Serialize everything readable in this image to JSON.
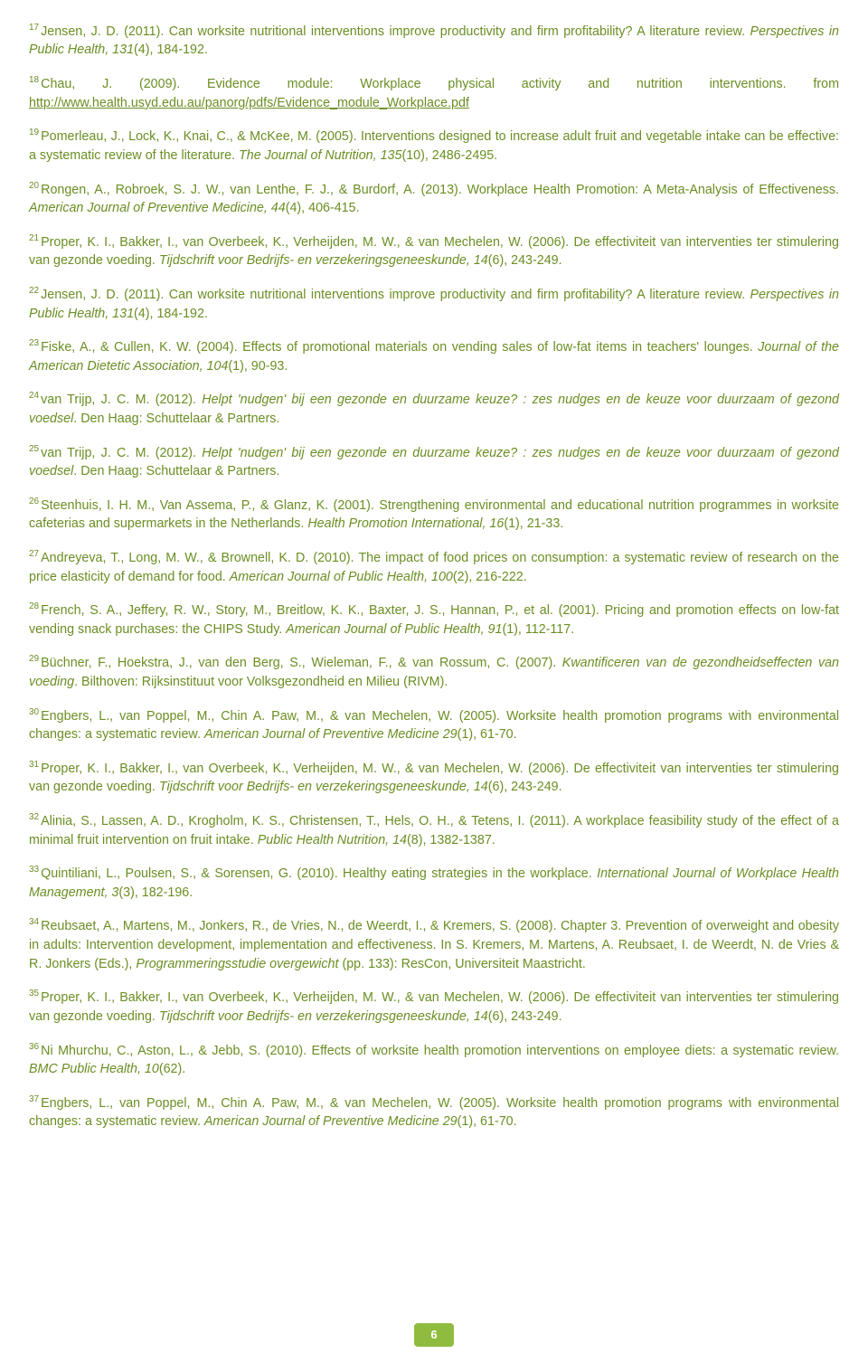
{
  "page_number": "6",
  "refs": [
    {
      "n": "17",
      "segs": [
        {
          "t": "Jensen, J. D. (2011). Can worksite nutritional interventions improve productivity and firm profitability? A literature review. "
        },
        {
          "t": "Perspectives in Public Health, 131",
          "i": true
        },
        {
          "t": "(4), 184-192."
        }
      ]
    },
    {
      "n": "18",
      "segs": [
        {
          "t": "Chau, J. (2009). Evidence module: Workplace physical activity and nutrition interventions. from "
        },
        {
          "t": "http://www.health.usyd.edu.au/panorg/pdfs/Evidence_module_Workplace.pdf",
          "link": true
        }
      ]
    },
    {
      "n": "19",
      "segs": [
        {
          "t": "Pomerleau, J., Lock, K., Knai, C., & McKee, M. (2005). Interventions designed to increase adult fruit and vegetable intake can be effective: a systematic review of the literature. "
        },
        {
          "t": "The Journal of Nutrition, 135",
          "i": true
        },
        {
          "t": "(10), 2486-2495."
        }
      ]
    },
    {
      "n": "20",
      "segs": [
        {
          "t": "Rongen, A., Robroek, S. J. W., van Lenthe, F. J., & Burdorf, A. (2013). Workplace Health Promotion: A Meta-Analysis of Effectiveness. "
        },
        {
          "t": "American Journal of Preventive Medicine, 44",
          "i": true
        },
        {
          "t": "(4), 406-415."
        }
      ]
    },
    {
      "n": "21",
      "segs": [
        {
          "t": "Proper, K. I., Bakker, I., van Overbeek, K., Verheijden, M. W., & van Mechelen, W. (2006). De effectiviteit van interventies ter stimulering van gezonde voeding. "
        },
        {
          "t": "Tijdschrift voor Bedrijfs- en verzekeringsgeneeskunde, 14",
          "i": true
        },
        {
          "t": "(6), 243-249."
        }
      ]
    },
    {
      "n": "22",
      "segs": [
        {
          "t": "Jensen, J. D. (2011). Can worksite nutritional interventions improve productivity and firm profitability? A literature review. "
        },
        {
          "t": "Perspectives in Public Health, 131",
          "i": true
        },
        {
          "t": "(4), 184-192."
        }
      ]
    },
    {
      "n": "23",
      "segs": [
        {
          "t": "Fiske, A., & Cullen, K. W. (2004). Effects of promotional materials on vending sales of low-fat items in teachers' lounges. "
        },
        {
          "t": "Journal of the American Dietetic Association, 104",
          "i": true
        },
        {
          "t": "(1), 90-93."
        }
      ]
    },
    {
      "n": "24",
      "segs": [
        {
          "t": "van Trijp, J. C. M. (2012). "
        },
        {
          "t": "Helpt 'nudgen' bij een gezonde en duurzame keuze? : zes nudges en de keuze voor duurzaam of gezond voedsel",
          "i": true
        },
        {
          "t": ". Den Haag: Schuttelaar & Partners."
        }
      ]
    },
    {
      "n": "25",
      "segs": [
        {
          "t": "van Trijp, J. C. M. (2012). "
        },
        {
          "t": "Helpt 'nudgen' bij een gezonde en duurzame keuze? : zes nudges en de keuze voor duurzaam of gezond voedsel",
          "i": true
        },
        {
          "t": ". Den Haag: Schuttelaar & Partners."
        }
      ]
    },
    {
      "n": "26",
      "segs": [
        {
          "t": "Steenhuis, I. H. M., Van Assema, P., & Glanz, K. (2001). Strengthening environmental and educational nutrition programmes in worksite cafeterias and supermarkets in the Netherlands. "
        },
        {
          "t": "Health Promotion International, 16",
          "i": true
        },
        {
          "t": "(1), 21-33."
        }
      ]
    },
    {
      "n": "27",
      "segs": [
        {
          "t": "Andreyeva, T., Long, M. W., & Brownell, K. D. (2010). The impact of food prices on consumption: a systematic review of research on the price elasticity of demand for food. "
        },
        {
          "t": "American Journal of Public Health, 100",
          "i": true
        },
        {
          "t": "(2), 216-222."
        }
      ]
    },
    {
      "n": "28",
      "segs": [
        {
          "t": "French, S. A., Jeffery, R. W., Story, M., Breitlow, K. K., Baxter, J. S., Hannan, P., et al. (2001). Pricing and promotion effects on low-fat vending snack purchases: the CHIPS Study. "
        },
        {
          "t": "American Journal of Public Health, 91",
          "i": true
        },
        {
          "t": "(1), 112-117."
        }
      ]
    },
    {
      "n": "29",
      "segs": [
        {
          "t": "Büchner, F., Hoekstra, J., van den Berg, S., Wieleman, F., & van Rossum, C. (2007). "
        },
        {
          "t": "Kwantificeren van de gezondheidseffecten van voeding",
          "i": true
        },
        {
          "t": ". Bilthoven: Rijksinstituut voor Volksgezondheid en Milieu (RIVM)."
        }
      ]
    },
    {
      "n": "30",
      "segs": [
        {
          "t": "Engbers, L., van Poppel, M., Chin A. Paw, M., & van Mechelen, W. (2005). Worksite health promotion programs with environmental changes: a systematic review. "
        },
        {
          "t": "American Journal of Preventive Medicine 29",
          "i": true
        },
        {
          "t": "(1), 61-70."
        }
      ]
    },
    {
      "n": "31",
      "segs": [
        {
          "t": "Proper, K. I., Bakker, I., van Overbeek, K., Verheijden, M. W., & van Mechelen, W. (2006). De effectiviteit van interventies ter stimulering van gezonde voeding. "
        },
        {
          "t": "Tijdschrift voor Bedrijfs- en verzekeringsgeneeskunde, 14",
          "i": true
        },
        {
          "t": "(6), 243-249."
        }
      ]
    },
    {
      "n": "32",
      "segs": [
        {
          "t": "Alinia, S., Lassen, A. D., Krogholm, K. S., Christensen, T., Hels, O. H., & Tetens, I. (2011). A workplace feasibility study of the effect of a minimal fruit intervention on fruit intake. "
        },
        {
          "t": "Public Health Nutrition, 14",
          "i": true
        },
        {
          "t": "(8), 1382-1387."
        }
      ]
    },
    {
      "n": "33",
      "segs": [
        {
          "t": "Quintiliani, L., Poulsen, S., & Sorensen, G. (2010). Healthy eating strategies in the workplace. "
        },
        {
          "t": "International Journal of Workplace Health Management, 3",
          "i": true
        },
        {
          "t": "(3), 182-196."
        }
      ]
    },
    {
      "n": "34",
      "segs": [
        {
          "t": "Reubsaet, A., Martens, M., Jonkers, R., de Vries, N., de Weerdt, I., & Kremers, S. (2008). Chapter 3. Prevention of overweight and obesity in adults: Intervention development, implementation and effectiveness. In S. Kremers, M. Martens, A. Reubsaet, I. de Weerdt, N. de Vries & R. Jonkers (Eds.), "
        },
        {
          "t": "Programmeringsstudie overgewicht",
          "i": true
        },
        {
          "t": " (pp. 133): ResCon, Universiteit Maastricht."
        }
      ]
    },
    {
      "n": "35",
      "segs": [
        {
          "t": "Proper, K. I., Bakker, I., van Overbeek, K., Verheijden, M. W., & van Mechelen, W. (2006). De effectiviteit van interventies ter stimulering van gezonde voeding. "
        },
        {
          "t": "Tijdschrift voor Bedrijfs- en verzekeringsgeneeskunde, 14",
          "i": true
        },
        {
          "t": "(6), 243-249."
        }
      ]
    },
    {
      "n": "36",
      "segs": [
        {
          "t": "Ni Mhurchu, C., Aston, L., & Jebb, S. (2010). Effects of worksite health promotion interventions on employee diets: a systematic review. "
        },
        {
          "t": "BMC Public Health, 10",
          "i": true
        },
        {
          "t": "(62)."
        }
      ]
    },
    {
      "n": "37",
      "segs": [
        {
          "t": "Engbers, L., van Poppel, M., Chin A. Paw, M., & van Mechelen, W. (2005). Worksite health promotion programs with environmental changes: a systematic review. "
        },
        {
          "t": "American Journal of Preventive Medicine 29",
          "i": true
        },
        {
          "t": "(1), 61-70."
        }
      ]
    }
  ]
}
